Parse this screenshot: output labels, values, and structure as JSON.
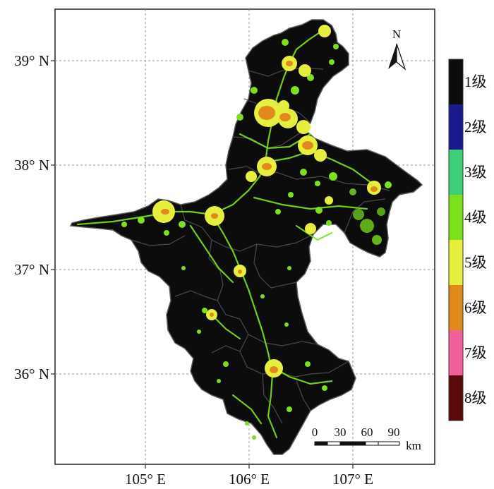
{
  "map": {
    "lat_labels": [
      {
        "text": "39° N",
        "lat": 39
      },
      {
        "text": "38° N",
        "lat": 38
      },
      {
        "text": "37° N",
        "lat": 37
      },
      {
        "text": "36° N",
        "lat": 36
      }
    ],
    "lon_labels": [
      {
        "text": "105° E",
        "lon": 105
      },
      {
        "text": "106° E",
        "lon": 106
      },
      {
        "text": "107° E",
        "lon": 107
      }
    ],
    "north_arrow_label": "N",
    "scale_bar": {
      "ticks": [
        "0",
        "30",
        "60",
        "90"
      ],
      "unit": "km"
    }
  },
  "legend": {
    "items": [
      {
        "label": "1级",
        "color": "#0c0c0c"
      },
      {
        "label": "2级",
        "color": "#1a1a8c"
      },
      {
        "label": "3级",
        "color": "#3dcf78"
      },
      {
        "label": "4级",
        "color": "#7ce01e"
      },
      {
        "label": "5级",
        "color": "#e7ef3e"
      },
      {
        "label": "6级",
        "color": "#e08a1c"
      },
      {
        "label": "7级",
        "color": "#f0609a"
      },
      {
        "label": "8级",
        "color": "#5a0a0a"
      }
    ]
  },
  "colors": {
    "region_fill": "#0c0c0c",
    "boundary": "#6a6a6a",
    "grid": "#9a9a9a"
  }
}
